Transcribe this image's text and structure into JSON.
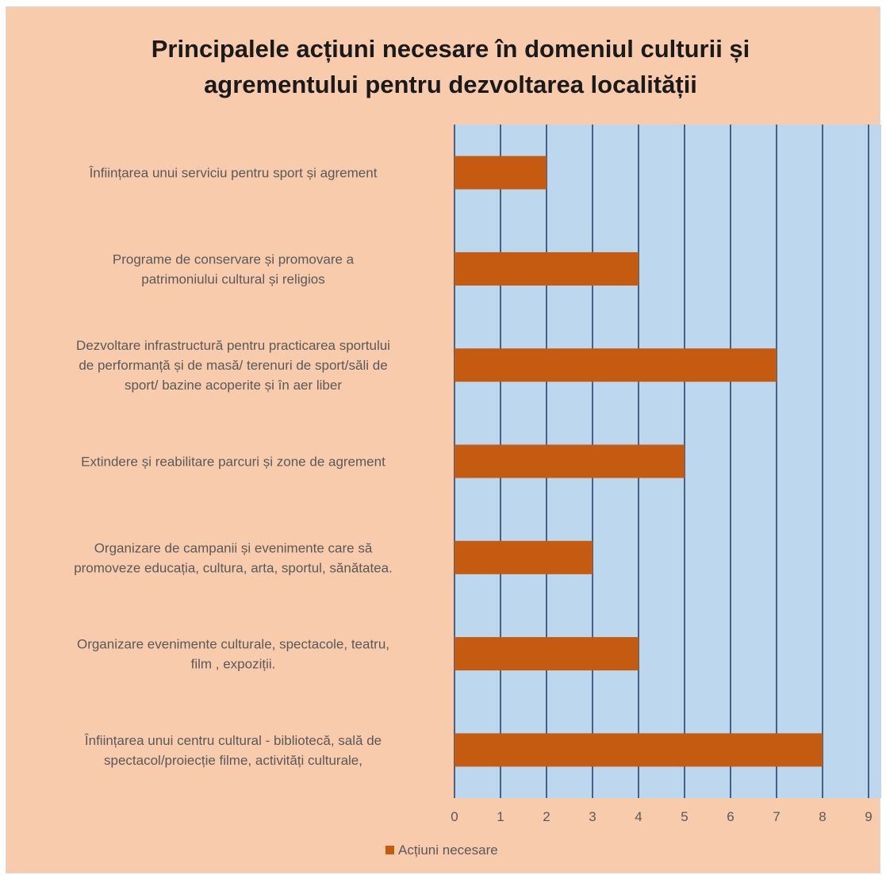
{
  "chart_data": {
    "type": "bar",
    "orientation": "horizontal",
    "title_lines": [
      "Principalele acțiuni necesare în domeniul culturii și",
      "agrementului pentru dezvoltarea localității"
    ],
    "categories": [
      [
        "Înființarea unui serviciu pentru sport și agrement"
      ],
      [
        "Programe de conservare și promovare a",
        "patrimoniului cultural și religios"
      ],
      [
        "Dezvoltare infrastructură pentru practicarea sportului",
        "de performanță și de masă/ terenuri de sport/săli de",
        "sport/ bazine acoperite și în aer liber"
      ],
      [
        "Extindere și reabilitare parcuri și zone de agrement"
      ],
      [
        "Organizare de campanii și evenimente care să",
        "promoveze educația, cultura, arta, sportul, sănătatea."
      ],
      [
        "Organizare evenimente culturale, spectacole, teatru,",
        "film , expoziții."
      ],
      [
        "Înființarea unui centru cultural - bibliotecă, sală de",
        "spectacol/proiecție filme, activități culturale,"
      ]
    ],
    "series": [
      {
        "name": "Acțiuni necesare",
        "color": "#c55a11",
        "values": [
          2,
          4,
          7,
          5,
          3,
          4,
          8
        ]
      }
    ],
    "xlim": [
      0,
      9
    ],
    "xticks": [
      "0",
      "1",
      "2",
      "3",
      "4",
      "5",
      "6",
      "7",
      "8",
      "9"
    ],
    "grid": true,
    "plot_background": "#bdd7ee",
    "chart_background": "#f8cbad",
    "gridline_color": "#1f3864",
    "legend_position": "bottom"
  }
}
